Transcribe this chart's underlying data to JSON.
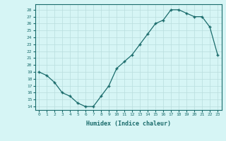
{
  "x": [
    0,
    1,
    2,
    3,
    4,
    5,
    6,
    7,
    8,
    9,
    10,
    11,
    12,
    13,
    14,
    15,
    16,
    17,
    18,
    19,
    20,
    21,
    22,
    23
  ],
  "y": [
    19,
    18.5,
    17.5,
    16,
    15.5,
    14.5,
    14,
    14,
    15.5,
    17,
    19.5,
    20.5,
    21.5,
    23,
    24.5,
    26,
    26.5,
    28,
    28,
    27.5,
    27,
    27,
    25.5,
    21.5
  ],
  "line_color": "#1a6b6b",
  "bg_color": "#d6f5f5",
  "grid_color": "#b8dede",
  "xlabel": "Humidex (Indice chaleur)",
  "xlim": [
    -0.5,
    23.5
  ],
  "ylim": [
    13.5,
    28.8
  ],
  "yticks": [
    14,
    15,
    16,
    17,
    18,
    19,
    20,
    21,
    22,
    23,
    24,
    25,
    26,
    27,
    28
  ],
  "xticks": [
    0,
    1,
    2,
    3,
    4,
    5,
    6,
    7,
    8,
    9,
    10,
    11,
    12,
    13,
    14,
    15,
    16,
    17,
    18,
    19,
    20,
    21,
    22,
    23
  ]
}
